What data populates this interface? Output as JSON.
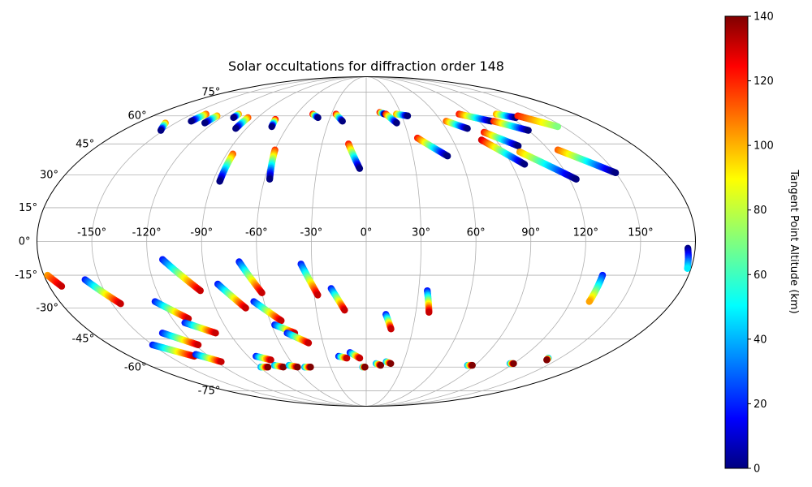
{
  "chart_data": {
    "type": "scatter",
    "projection": "mollweide",
    "title": "Solar occultations for diffraction order 148",
    "lon_ticks": [
      -150,
      -120,
      -90,
      -60,
      -30,
      0,
      30,
      60,
      90,
      120,
      150
    ],
    "lon_tick_labels": [
      "-150°",
      "-120°",
      "-90°",
      "-60°",
      "-30°",
      "0°",
      "30°",
      "60°",
      "90°",
      "120°",
      "150°"
    ],
    "lat_ticks": [
      -75,
      -60,
      -45,
      -30,
      -15,
      0,
      15,
      30,
      45,
      60,
      75
    ],
    "lat_tick_labels": [
      "-75°",
      "-60°",
      "-45°",
      "-30°",
      "-15°",
      "0°",
      "15°",
      "30°",
      "45°",
      "60°",
      "75°"
    ],
    "grid": true,
    "colorbar": {
      "label": "Tangent Point Altitude (km)",
      "colormap": "jet",
      "range": [
        0,
        140
      ],
      "ticks": [
        0,
        20,
        40,
        60,
        80,
        100,
        120,
        140
      ],
      "tick_labels": [
        "0",
        "20",
        "40",
        "60",
        "80",
        "100",
        "120",
        "140"
      ]
    },
    "tracks": [
      {
        "lon": [
          -158,
          -152
        ],
        "lat": [
          56,
          52
        ],
        "alt": [
          100,
          0
        ]
      },
      {
        "lon": [
          -138,
          -140
        ],
        "lat": [
          61,
          57
        ],
        "alt": [
          110,
          0
        ]
      },
      {
        "lon": [
          -126,
          -127
        ],
        "lat": [
          60,
          56
        ],
        "alt": [
          100,
          0
        ]
      },
      {
        "lon": [
          -110,
          -110
        ],
        "lat": [
          61,
          59
        ],
        "alt": [
          100,
          0
        ]
      },
      {
        "lon": [
          -98,
          -98
        ],
        "lat": [
          59,
          53
        ],
        "alt": [
          110,
          0
        ]
      },
      {
        "lon": [
          -86,
          -86
        ],
        "lat": [
          40,
          27
        ],
        "alt": [
          110,
          0
        ]
      },
      {
        "lon": [
          -74,
          -72
        ],
        "lat": [
          58,
          54
        ],
        "alt": [
          120,
          0
        ]
      },
      {
        "lon": [
          -60,
          -57
        ],
        "lat": [
          42,
          28
        ],
        "alt": [
          115,
          0
        ]
      },
      {
        "lon": [
          -46,
          -40
        ],
        "lat": [
          61,
          59
        ],
        "alt": [
          120,
          0
        ]
      },
      {
        "lon": [
          -26,
          -19
        ],
        "lat": [
          61,
          57
        ],
        "alt": [
          120,
          0
        ]
      },
      {
        "lon": [
          -12,
          -4
        ],
        "lat": [
          45,
          33
        ],
        "alt": [
          120,
          0
        ]
      },
      {
        "lon": [
          12,
          16
        ],
        "lat": [
          62,
          61
        ],
        "alt": [
          120,
          0
        ]
      },
      {
        "lon": [
          17,
          24
        ],
        "lat": [
          61,
          56
        ],
        "alt": [
          120,
          0
        ]
      },
      {
        "lon": [
          26,
          35
        ],
        "lat": [
          61,
          60
        ],
        "alt": [
          100,
          0
        ]
      },
      {
        "lon": [
          36,
          52
        ],
        "lat": [
          48,
          39
        ],
        "alt": [
          120,
          0
        ]
      },
      {
        "lon": [
          64,
          76
        ],
        "lat": [
          57,
          53
        ],
        "alt": [
          110,
          0
        ]
      },
      {
        "lon": [
          80,
          100
        ],
        "lat": [
          61,
          57
        ],
        "alt": [
          120,
          0
        ]
      },
      {
        "lon": [
          86,
          102
        ],
        "lat": [
          51,
          44
        ],
        "alt": [
          120,
          0
        ]
      },
      {
        "lon": [
          80,
          98
        ],
        "lat": [
          47,
          35
        ],
        "alt": [
          130,
          0
        ]
      },
      {
        "lon": [
          102,
          120
        ],
        "lat": [
          57,
          52
        ],
        "alt": [
          120,
          0
        ]
      },
      {
        "lon": [
          112,
          124
        ],
        "lat": [
          61,
          59
        ],
        "alt": [
          100,
          0
        ]
      },
      {
        "lon": [
          100,
          124
        ],
        "lat": [
          41,
          28
        ],
        "alt": [
          100,
          0
        ]
      },
      {
        "lon": [
          128,
          146
        ],
        "lat": [
          60,
          54
        ],
        "alt": [
          120,
          70
        ]
      },
      {
        "lon": [
          126,
          150
        ],
        "lat": [
          42,
          31
        ],
        "alt": [
          110,
          0
        ]
      },
      {
        "lon": [
          -178,
          -173
        ],
        "lat": [
          -15,
          -20
        ],
        "alt": [
          100,
          130
        ]
      },
      {
        "lon": [
          -158,
          -145
        ],
        "lat": [
          -17,
          -28
        ],
        "alt": [
          20,
          130
        ]
      },
      {
        "lon": [
          -112,
          -95
        ],
        "lat": [
          -8,
          -22
        ],
        "alt": [
          20,
          130
        ]
      },
      {
        "lon": [
          -84,
          -72
        ],
        "lat": [
          -19,
          -30
        ],
        "alt": [
          20,
          130
        ]
      },
      {
        "lon": [
          -70,
          -60
        ],
        "lat": [
          -9,
          -23
        ],
        "alt": [
          20,
          130
        ]
      },
      {
        "lon": [
          -36,
          -28
        ],
        "lat": [
          -10,
          -24
        ],
        "alt": [
          20,
          130
        ]
      },
      {
        "lon": [
          -20,
          -13
        ],
        "lat": [
          -21,
          -31
        ],
        "alt": [
          20,
          130
        ]
      },
      {
        "lon": [
          -66,
          -53
        ],
        "lat": [
          -27,
          -36
        ],
        "alt": [
          20,
          130
        ]
      },
      {
        "lon": [
          -58,
          -47
        ],
        "lat": [
          -38,
          -42
        ],
        "alt": [
          20,
          130
        ]
      },
      {
        "lon": [
          -52,
          -40
        ],
        "lat": [
          -42,
          -47
        ],
        "alt": [
          20,
          130
        ]
      },
      {
        "lon": [
          -124,
          -110
        ],
        "lat": [
          -27,
          -35
        ],
        "alt": [
          20,
          130
        ]
      },
      {
        "lon": [
          -114,
          -99
        ],
        "lat": [
          -37,
          -42
        ],
        "alt": [
          20,
          130
        ]
      },
      {
        "lon": [
          -134,
          -118
        ],
        "lat": [
          -42,
          -48
        ],
        "alt": [
          20,
          130
        ]
      },
      {
        "lon": [
          -150,
          -131
        ],
        "lat": [
          -48,
          -54
        ],
        "alt": [
          20,
          130
        ]
      },
      {
        "lon": [
          -128,
          -116
        ],
        "lat": [
          -53,
          -57
        ],
        "alt": [
          20,
          130
        ]
      },
      {
        "lon": [
          -84,
          -75
        ],
        "lat": [
          -54,
          -56
        ],
        "alt": [
          20,
          130
        ]
      },
      {
        "lon": [
          -89,
          -83
        ],
        "lat": [
          -60,
          -60
        ],
        "alt": [
          40,
          140
        ]
      },
      {
        "lon": [
          -76,
          -70
        ],
        "lat": [
          -59,
          -60
        ],
        "alt": [
          40,
          140
        ]
      },
      {
        "lon": [
          -64,
          -58
        ],
        "lat": [
          -59,
          -60
        ],
        "alt": [
          40,
          140
        ]
      },
      {
        "lon": [
          -52,
          -47
        ],
        "lat": [
          -60,
          -60
        ],
        "alt": [
          40,
          140
        ]
      },
      {
        "lon": [
          -21,
          -15
        ],
        "lat": [
          -54,
          -55
        ],
        "alt": [
          20,
          130
        ]
      },
      {
        "lon": [
          -12,
          -5
        ],
        "lat": [
          -52,
          -55
        ],
        "alt": [
          20,
          130
        ]
      },
      {
        "lon": [
          -3,
          -1
        ],
        "lat": [
          -60,
          -60
        ],
        "alt": [
          40,
          140
        ]
      },
      {
        "lon": [
          8,
          12
        ],
        "lat": [
          -58,
          -59
        ],
        "alt": [
          40,
          140
        ]
      },
      {
        "lon": [
          16,
          20
        ],
        "lat": [
          -57,
          -58
        ],
        "alt": [
          40,
          140
        ]
      },
      {
        "lon": [
          12,
          16
        ],
        "lat": [
          -33,
          -40
        ],
        "alt": [
          20,
          130
        ]
      },
      {
        "lon": [
          35,
          38
        ],
        "lat": [
          -22,
          -32
        ],
        "alt": [
          20,
          130
        ]
      },
      {
        "lon": [
          84,
          88
        ],
        "lat": [
          -59,
          -59
        ],
        "alt": [
          40,
          140
        ]
      },
      {
        "lon": [
          117,
          120
        ],
        "lat": [
          -58,
          -58
        ],
        "alt": [
          40,
          140
        ]
      },
      {
        "lon": [
          141,
          142
        ],
        "lat": [
          -55,
          -56
        ],
        "alt": [
          40,
          140
        ]
      },
      {
        "lon": [
          132,
          131
        ],
        "lat": [
          -15,
          -27
        ],
        "alt": [
          20,
          100
        ]
      },
      {
        "lon": [
          176,
          178
        ],
        "lat": [
          -3,
          -12
        ],
        "alt": [
          0,
          50
        ]
      }
    ]
  }
}
